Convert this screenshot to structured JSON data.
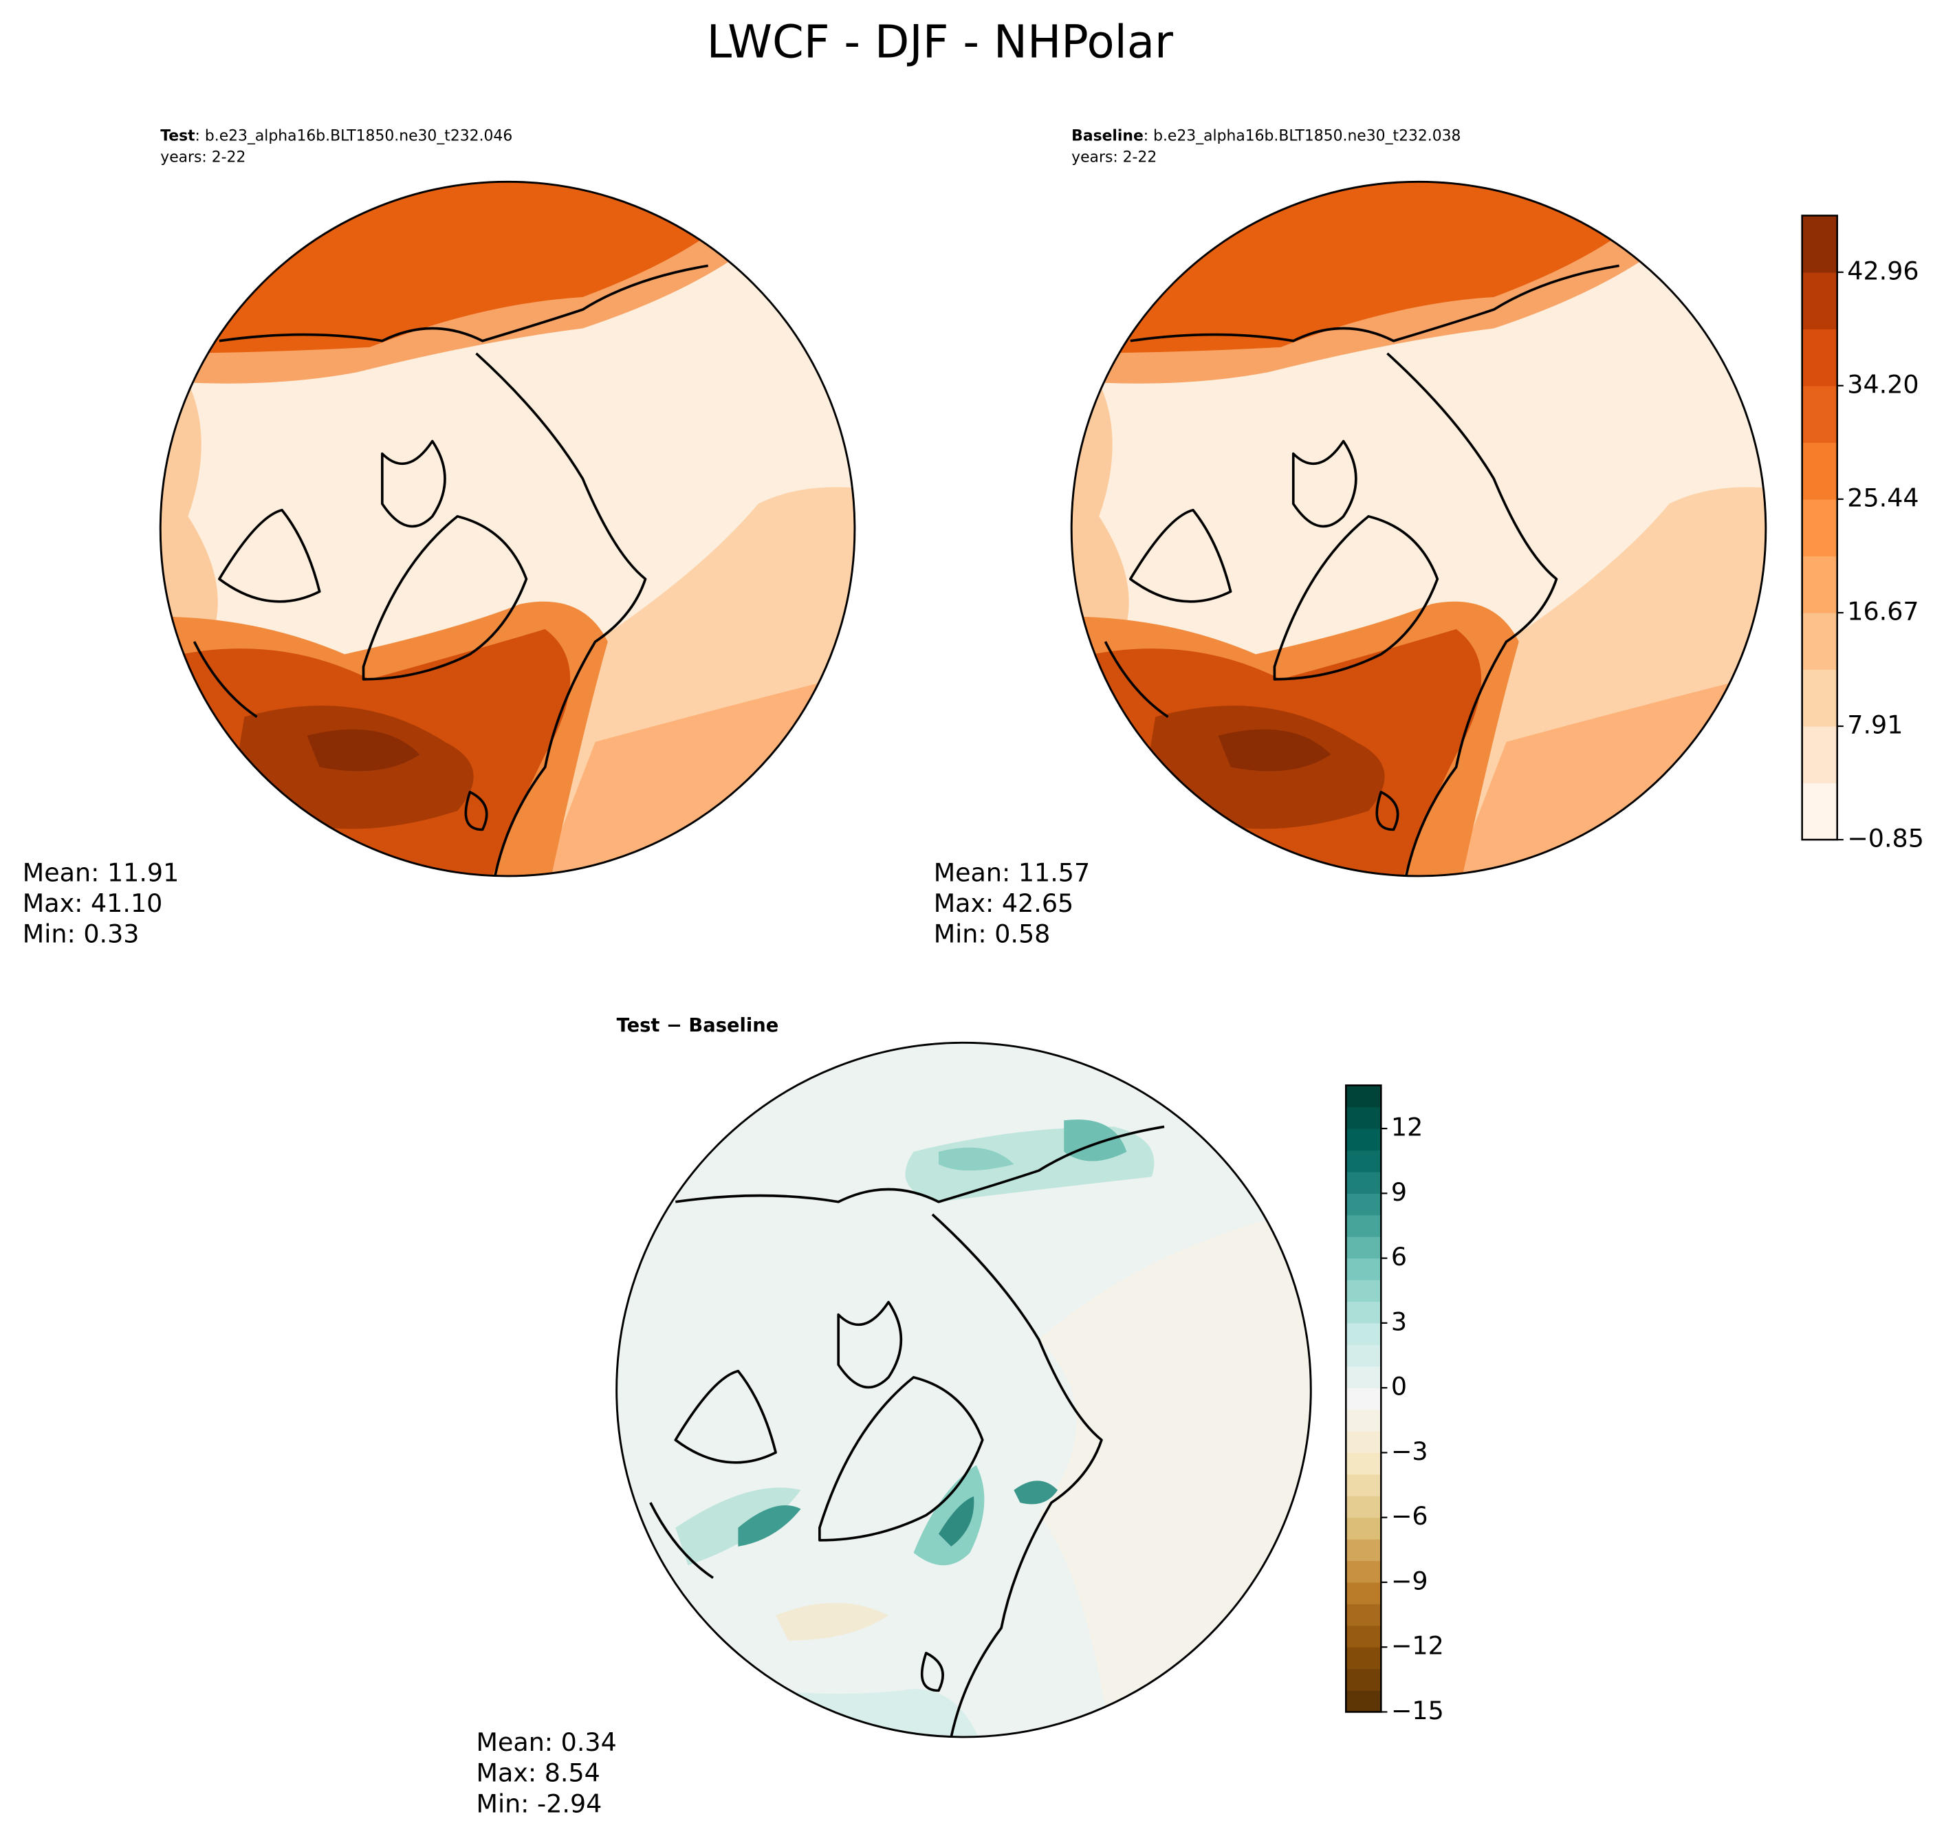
{
  "chart_data": {
    "type": "polar-map",
    "title": "LWCF - DJF - NHPolar",
    "panels": [
      {
        "case_label": "Test",
        "case_name": ": b.e23_alpha16b.BLT1850.ne30_t232.046",
        "years": "years: 2-22",
        "stats": [
          {
            "name": "Mean:",
            "value": 11.91
          },
          {
            "name": "Max:",
            "value": 41.1,
            "value_label": "41.10"
          },
          {
            "name": "Min:",
            "value": 0.33
          }
        ]
      },
      {
        "case_label": "Baseline",
        "case_name": ": b.e23_alpha16b.BLT1850.ne30_t232.038",
        "years": "years: 2-22",
        "stats": [
          {
            "name": "Mean:",
            "value": 11.57
          },
          {
            "name": "Max:",
            "value": 42.65
          },
          {
            "name": "Min:",
            "value": 0.58
          }
        ]
      }
    ],
    "diff": {
      "title": "Test − Baseline",
      "stats": [
        {
          "name": "Mean:",
          "value": 0.34
        },
        {
          "name": "Max:",
          "value": 8.54
        },
        {
          "name": "Min:",
          "value": -2.94
        }
      ]
    },
    "colorbars": [
      {
        "lim": [
          -0.85,
          47.33
        ],
        "ticks": [
          {
            "value": -0.85,
            "label": "−0.85"
          },
          7.91,
          16.67,
          25.44,
          {
            "value": 34.2,
            "label": "34.20"
          },
          42.96
        ],
        "colors": [
          "#fff5eb",
          "#fee6ce",
          "#fdd5ab",
          "#fdc28c",
          "#fdab67",
          "#fd9446",
          "#f67d2a",
          "#e8631a",
          "#d94e0d",
          "#b73c05",
          "#8f2d04"
        ]
      },
      {
        "lim": [
          -15,
          14
        ],
        "ticks": [
          12,
          9,
          6,
          3,
          0,
          {
            "value": -3,
            "label": "−3"
          },
          {
            "value": -6,
            "label": "−6"
          },
          {
            "value": -9,
            "label": "−9"
          },
          {
            "value": -12,
            "label": "−12"
          },
          {
            "value": -15,
            "label": "−15"
          }
        ],
        "cmap": [
          "#543005",
          "#8c510a",
          "#bf812d",
          "#dfc27d",
          "#f6e8c3",
          "#f5f5f5",
          "#c7eae5",
          "#80cdc1",
          "#35978f",
          "#01665e",
          "#003c30"
        ]
      }
    ]
  }
}
